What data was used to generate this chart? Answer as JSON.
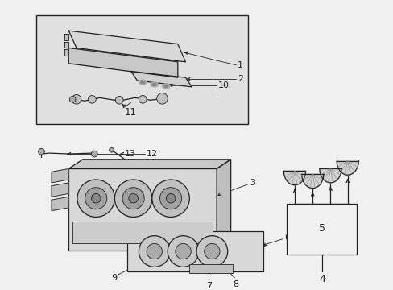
{
  "fig_bg": "#f0f0f0",
  "box_bg": "#e0e0e0",
  "white": "#ffffff",
  "dgray": "#222222",
  "mgray": "#888888",
  "lgray": "#cccccc",
  "lw_main": 0.9,
  "lw_thin": 0.6
}
